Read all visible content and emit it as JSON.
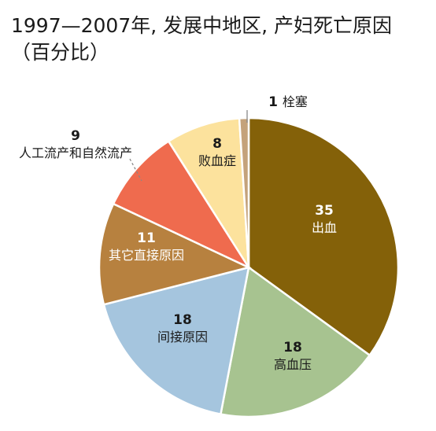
{
  "chart_data": {
    "type": "pie",
    "title_line1": "1997—2007年, 发展中地区, 产妇死亡原因",
    "title_line2": "（百分比）",
    "slices": [
      {
        "name": "出血",
        "value": 35,
        "color": "#846109"
      },
      {
        "name": "高血压",
        "value": 18,
        "color": "#a7c390"
      },
      {
        "name": "间接原因",
        "value": 18,
        "color": "#a5c5de"
      },
      {
        "name": "其它直接原因",
        "value": 11,
        "color": "#b7813f"
      },
      {
        "name": "人工流产和自然流产",
        "value": 9,
        "color": "#ef6b4e"
      },
      {
        "name": "败血症",
        "value": 8,
        "color": "#fce29d"
      },
      {
        "name": "栓塞",
        "value": 1,
        "color": "#c4a27b"
      }
    ]
  }
}
